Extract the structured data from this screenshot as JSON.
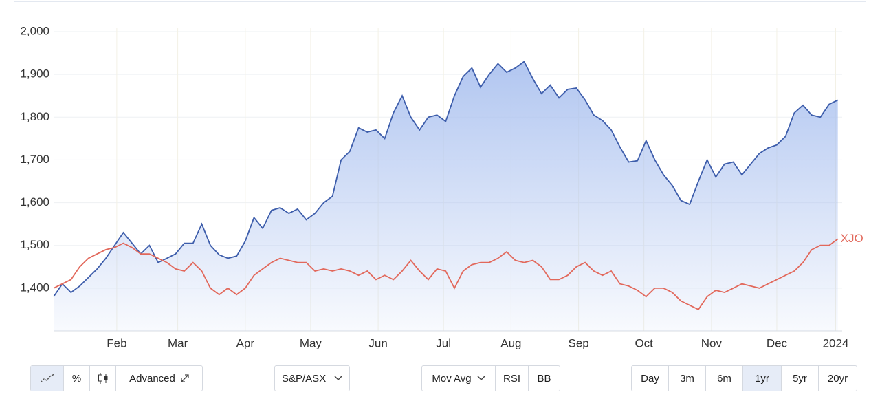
{
  "chart_data": {
    "type": "line",
    "x": [
      2,
      6,
      10,
      14,
      18,
      22,
      26,
      30,
      34,
      38,
      42,
      46,
      50,
      54,
      58,
      62,
      66,
      70,
      74,
      78,
      82,
      86,
      90,
      94,
      98,
      102,
      106,
      110,
      114,
      118,
      122,
      126,
      130,
      134,
      138,
      142,
      146,
      150,
      154,
      158,
      162,
      166,
      170,
      174,
      178,
      182,
      186,
      190,
      194,
      198,
      202,
      206,
      210,
      214,
      218,
      222,
      226,
      230,
      234,
      238,
      242,
      246,
      250,
      254,
      258,
      262,
      266,
      270,
      274,
      278,
      282,
      286,
      290,
      294,
      298,
      302,
      306,
      310,
      314,
      318,
      322,
      326,
      330,
      334,
      338,
      342,
      346,
      350,
      354,
      358,
      362
    ],
    "series": [
      {
        "color": "#3d5dab",
        "values": [
          1380,
          1410,
          1390,
          1405,
          1425,
          1445,
          1470,
          1500,
          1530,
          1505,
          1480,
          1500,
          1460,
          1470,
          1480,
          1505,
          1505,
          1550,
          1500,
          1478,
          1470,
          1475,
          1510,
          1565,
          1540,
          1582,
          1588,
          1575,
          1585,
          1560,
          1575,
          1600,
          1615,
          1700,
          1720,
          1775,
          1765,
          1770,
          1750,
          1810,
          1850,
          1800,
          1770,
          1800,
          1805,
          1790,
          1850,
          1895,
          1915,
          1870,
          1900,
          1925,
          1905,
          1915,
          1930,
          1890,
          1855,
          1875,
          1845,
          1865,
          1868,
          1840,
          1805,
          1792,
          1770,
          1730,
          1695,
          1698,
          1745,
          1700,
          1665,
          1640,
          1605,
          1596,
          1650,
          1700,
          1660,
          1690,
          1695,
          1665,
          1690,
          1715,
          1728,
          1735,
          1755,
          1810,
          1828,
          1805,
          1800,
          1830,
          1840
        ]
      },
      {
        "name": "XJO",
        "color": "#e2685b",
        "values": [
          1400,
          1410,
          1420,
          1450,
          1470,
          1480,
          1490,
          1495,
          1505,
          1495,
          1480,
          1480,
          1470,
          1460,
          1445,
          1440,
          1460,
          1440,
          1400,
          1385,
          1400,
          1385,
          1400,
          1430,
          1445,
          1460,
          1470,
          1465,
          1460,
          1460,
          1440,
          1445,
          1440,
          1445,
          1440,
          1430,
          1440,
          1420,
          1430,
          1420,
          1440,
          1465,
          1440,
          1420,
          1445,
          1440,
          1400,
          1440,
          1455,
          1460,
          1460,
          1470,
          1485,
          1465,
          1460,
          1465,
          1450,
          1420,
          1420,
          1430,
          1450,
          1460,
          1440,
          1430,
          1440,
          1410,
          1405,
          1395,
          1380,
          1400,
          1400,
          1390,
          1370,
          1360,
          1350,
          1380,
          1395,
          1390,
          1400,
          1410,
          1405,
          1400,
          1410,
          1420,
          1430,
          1440,
          1460,
          1490,
          1500,
          1500,
          1515
        ]
      }
    ],
    "xlim": [
      2,
      364
    ],
    "xticks": [
      {
        "value": 31,
        "label": "Feb"
      },
      {
        "value": 59,
        "label": "Mar"
      },
      {
        "value": 90,
        "label": "Apr"
      },
      {
        "value": 120,
        "label": "May"
      },
      {
        "value": 151,
        "label": "Jun"
      },
      {
        "value": 181,
        "label": "Jul"
      },
      {
        "value": 212,
        "label": "Aug"
      },
      {
        "value": 243,
        "label": "Sep"
      },
      {
        "value": 273,
        "label": "Oct"
      },
      {
        "value": 304,
        "label": "Nov"
      },
      {
        "value": 334,
        "label": "Dec"
      },
      {
        "value": 361,
        "label": "2024"
      }
    ],
    "ylim": [
      1300,
      2000
    ],
    "yticks": [
      {
        "value": 1400,
        "label": "1,400"
      },
      {
        "value": 1500,
        "label": "1,500"
      },
      {
        "value": 1600,
        "label": "1,600"
      },
      {
        "value": 1700,
        "label": "1,700"
      },
      {
        "value": 1800,
        "label": "1,800"
      },
      {
        "value": 1900,
        "label": "1,900"
      },
      {
        "value": 2000,
        "label": "2,000"
      }
    ],
    "grid": true
  },
  "toolbar": {
    "chart_types": [
      "%"
    ],
    "advanced": "Advanced",
    "index_select": "S&P/ASX",
    "indicators": [
      "Mov Avg",
      "RSI",
      "BB"
    ],
    "ranges": [
      "Day",
      "3m",
      "6m",
      "1yr",
      "5yr",
      "20yr"
    ],
    "active_range": "1yr"
  }
}
